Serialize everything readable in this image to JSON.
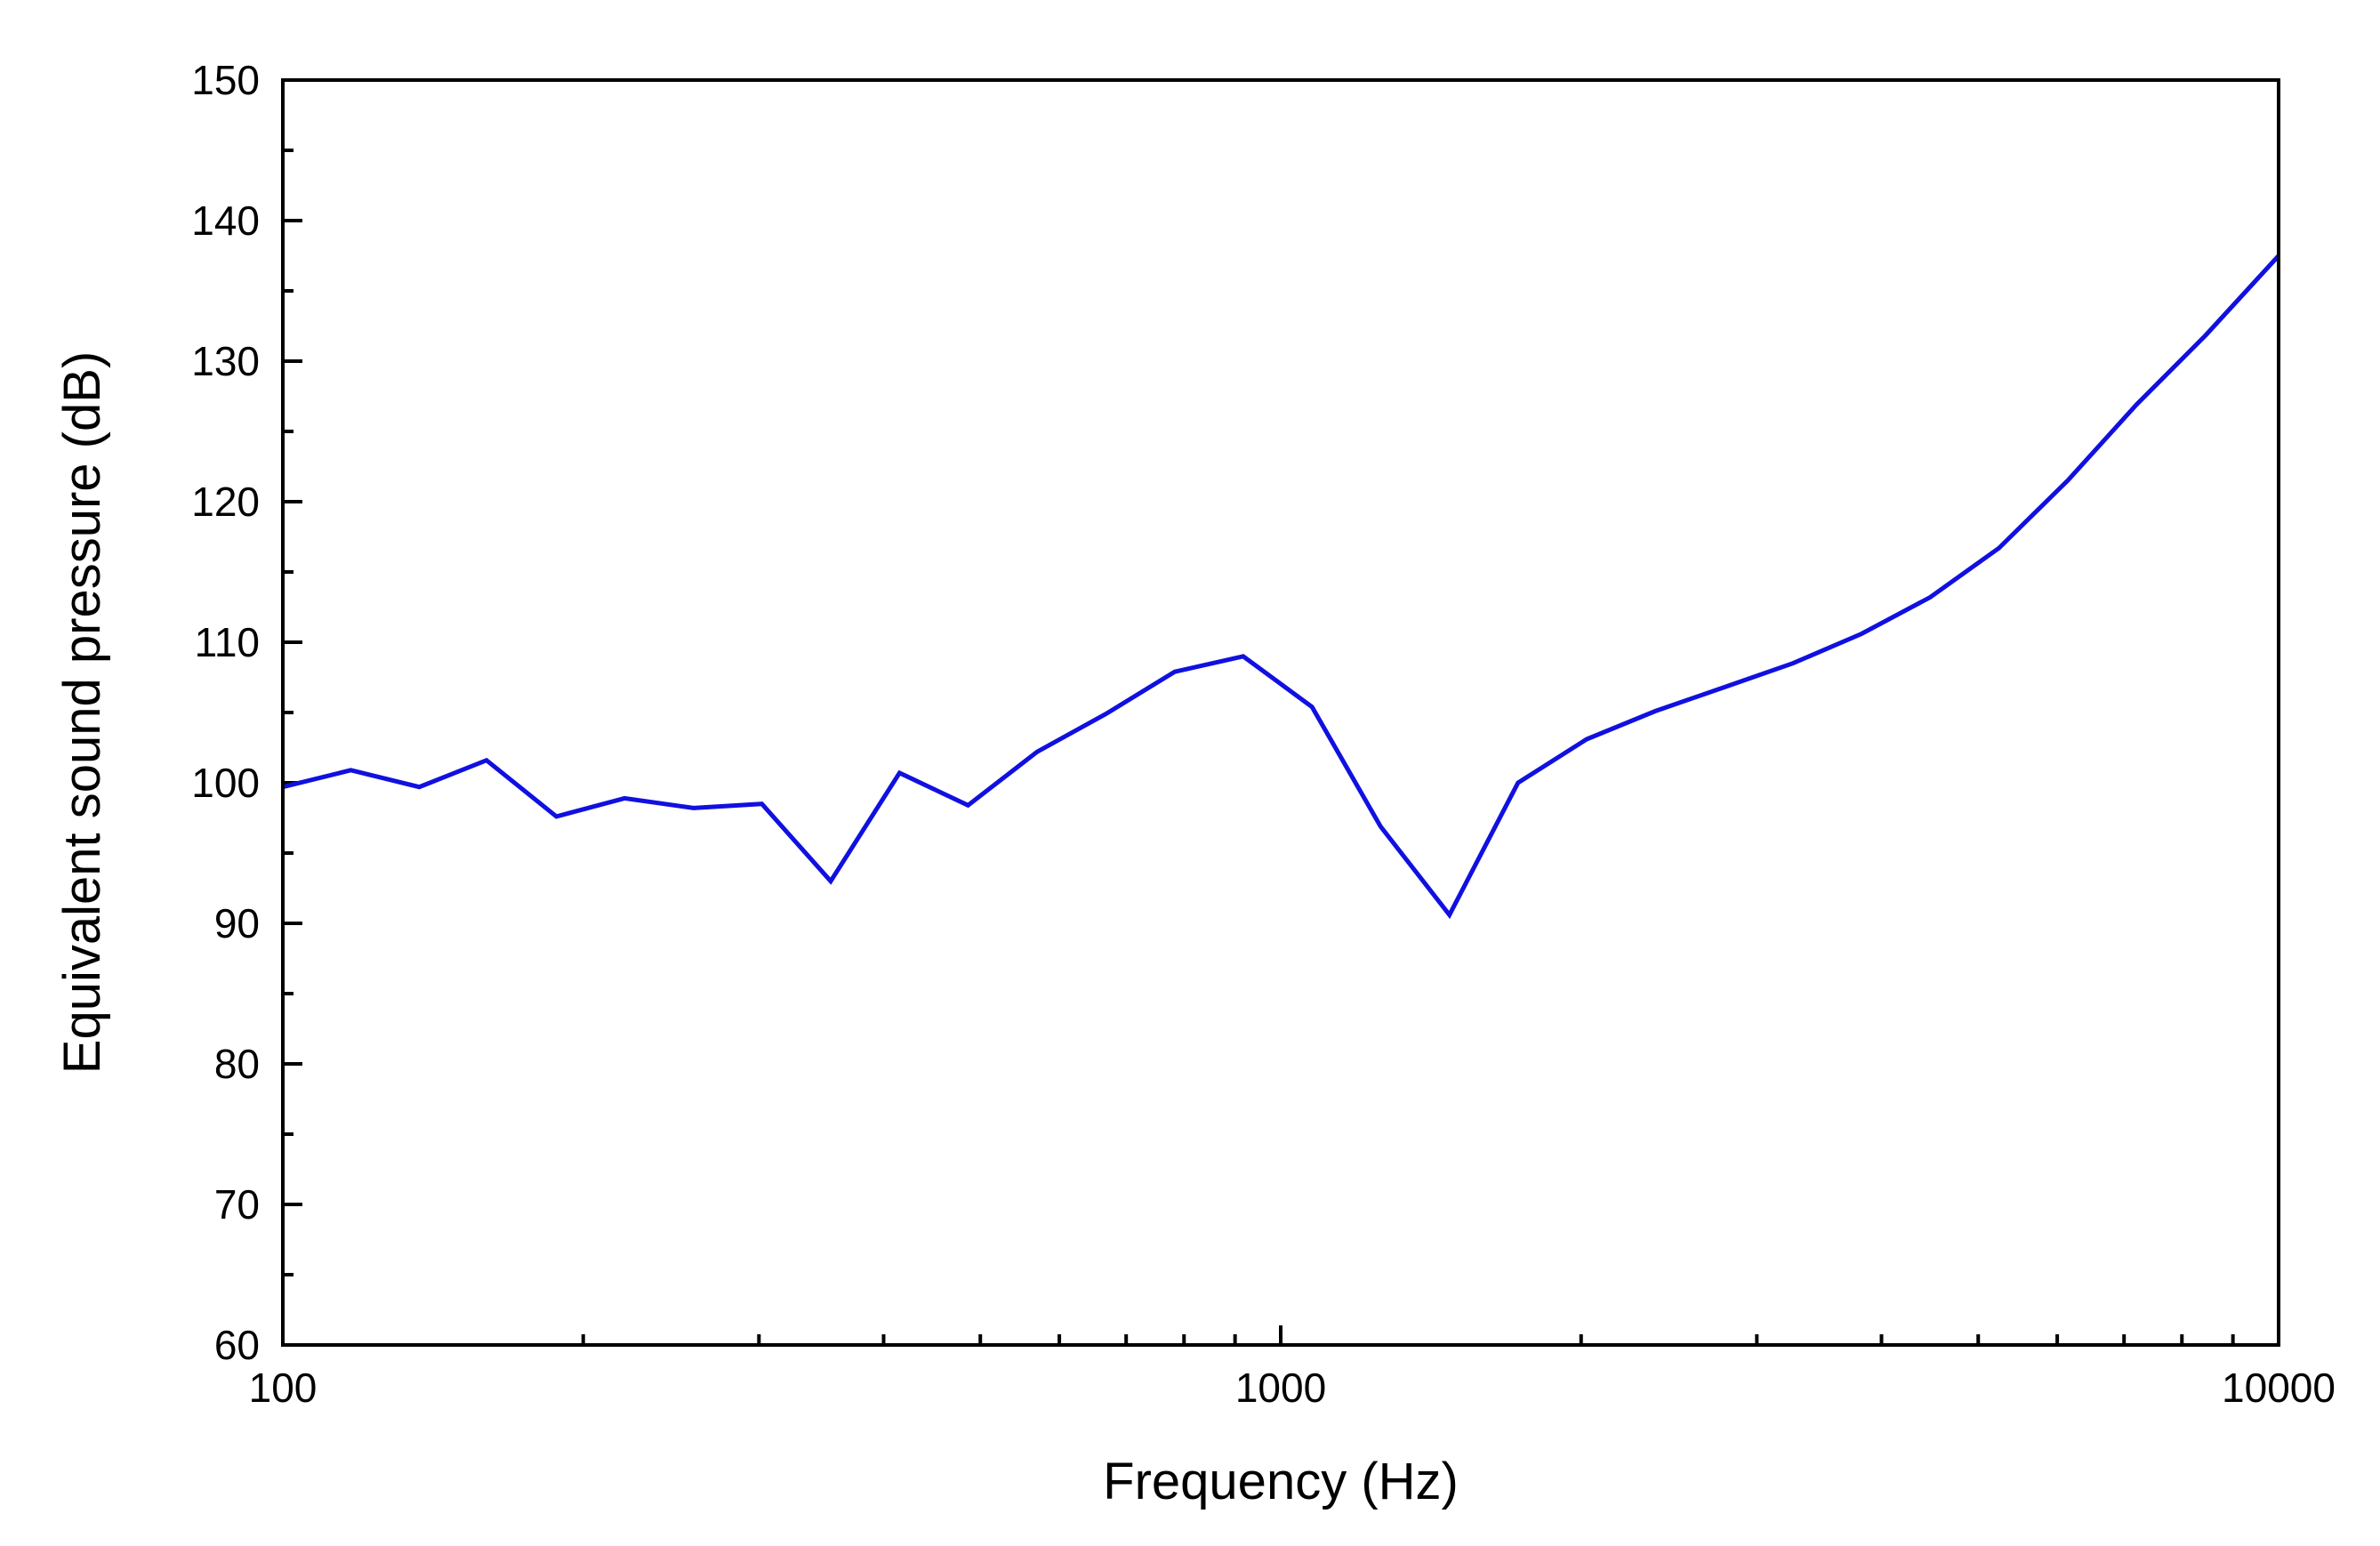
{
  "chart_data": {
    "type": "line",
    "title": "",
    "xlabel": "Frequency (Hz)",
    "ylabel": "Equivalent sound pressure (dB)",
    "xscale": "log",
    "xlim": [
      100,
      10000
    ],
    "ylim": [
      60,
      150
    ],
    "x_ticks": [
      {
        "value": 100,
        "label": "100"
      },
      {
        "value": 1000,
        "label": "1000"
      },
      {
        "value": 10000,
        "label": "10000"
      }
    ],
    "y_ticks": [
      {
        "value": 60,
        "label": "60"
      },
      {
        "value": 70,
        "label": "70"
      },
      {
        "value": 80,
        "label": "80"
      },
      {
        "value": 90,
        "label": "90"
      },
      {
        "value": 100,
        "label": "100"
      },
      {
        "value": 110,
        "label": "110"
      },
      {
        "value": 120,
        "label": "120"
      },
      {
        "value": 130,
        "label": "130"
      },
      {
        "value": 140,
        "label": "140"
      },
      {
        "value": 150,
        "label": "150"
      }
    ],
    "grid": false,
    "legend": "none",
    "series": [
      {
        "color": "#1010e0",
        "x": [
          100,
          117,
          137,
          160,
          188,
          220,
          258,
          302,
          354,
          415,
          486,
          570,
          668,
          783,
          917,
          1075,
          1259,
          1476,
          1729,
          2026,
          2374,
          2782,
          3260,
          3820,
          4476,
          5245,
          6146,
          7202,
          8439,
          10000
        ],
        "y": [
          99.7,
          100.9,
          99.7,
          101.6,
          97.6,
          98.9,
          98.2,
          98.5,
          93.0,
          100.7,
          98.4,
          102.2,
          104.9,
          107.9,
          109.0,
          105.4,
          96.9,
          90.6,
          100.0,
          103.1,
          105.1,
          106.8,
          108.5,
          110.6,
          113.2,
          116.7,
          121.5,
          126.9,
          131.8,
          137.5
        ]
      }
    ]
  }
}
